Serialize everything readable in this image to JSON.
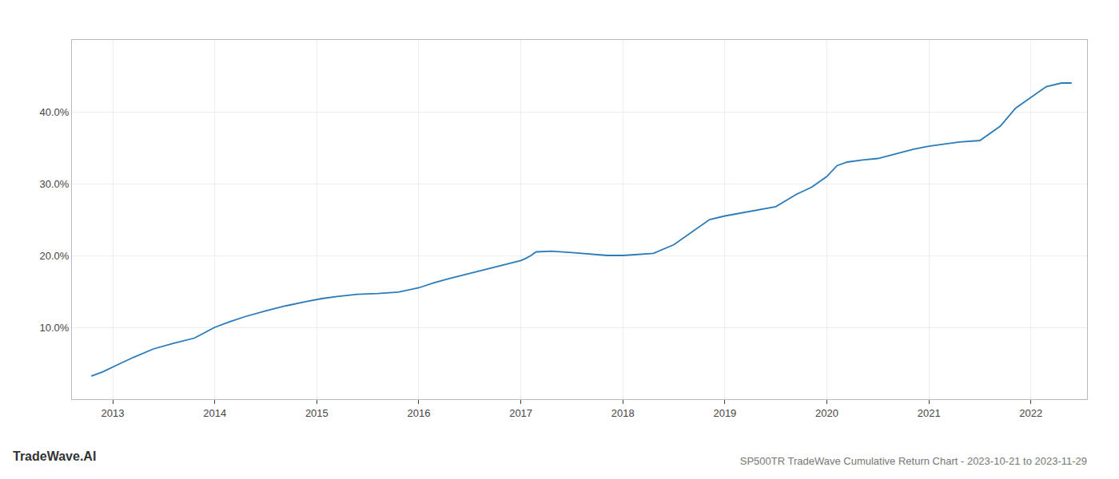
{
  "chart_data": {
    "type": "line",
    "title": "SP500TR TradeWave Cumulative Return Chart - 2023-10-21 to 2023-11-29",
    "annotations": [
      "TradeWave.AI"
    ],
    "x": [
      2012.79,
      2012.9,
      2013.05,
      2013.2,
      2013.4,
      2013.6,
      2013.8,
      2014.0,
      2014.15,
      2014.3,
      2014.5,
      2014.7,
      2014.9,
      2015.05,
      2015.2,
      2015.4,
      2015.6,
      2015.8,
      2016.0,
      2016.15,
      2016.3,
      2016.5,
      2016.7,
      2016.9,
      2017.0,
      2017.05,
      2017.1,
      2017.15,
      2017.3,
      2017.5,
      2017.7,
      2017.85,
      2018.0,
      2018.05,
      2018.15,
      2018.3,
      2018.5,
      2018.7,
      2018.85,
      2019.0,
      2019.15,
      2019.3,
      2019.5,
      2019.7,
      2019.85,
      2020.0,
      2020.1,
      2020.2,
      2020.35,
      2020.5,
      2020.7,
      2020.85,
      2021.0,
      2021.15,
      2021.3,
      2021.5,
      2021.7,
      2021.85,
      2022.0,
      2022.15,
      2022.3,
      2022.4
    ],
    "values": [
      3.2,
      3.8,
      4.8,
      5.8,
      7.0,
      7.8,
      8.5,
      10.0,
      10.8,
      11.5,
      12.3,
      13.0,
      13.6,
      14.0,
      14.3,
      14.6,
      14.7,
      14.9,
      15.5,
      16.2,
      16.8,
      17.5,
      18.2,
      18.9,
      19.3,
      19.6,
      20.0,
      20.5,
      20.6,
      20.4,
      20.2,
      20.0,
      20.0,
      20.05,
      20.1,
      20.3,
      21.5,
      23.5,
      25.0,
      25.5,
      25.9,
      26.3,
      26.8,
      28.5,
      29.5,
      31.0,
      32.5,
      33.0,
      33.3,
      33.5,
      34.2,
      34.8,
      35.2,
      35.5,
      35.8,
      36.0,
      38.0,
      40.5,
      42.0,
      43.5,
      44.0,
      44.0
    ],
    "color": "#2b7bba",
    "xlim": [
      2012.6,
      2022.55
    ],
    "xticks": [
      2013,
      2014,
      2015,
      2016,
      2017,
      2018,
      2019,
      2020,
      2021,
      2022
    ],
    "ylim": [
      0,
      50
    ],
    "yticks": [
      {
        "value": 10.0,
        "label": "10.0%"
      },
      {
        "value": 20.0,
        "label": "20.0%"
      },
      {
        "value": 30.0,
        "label": "30.0%"
      },
      {
        "value": 40.0,
        "label": "40.0%"
      }
    ],
    "grid": true
  }
}
